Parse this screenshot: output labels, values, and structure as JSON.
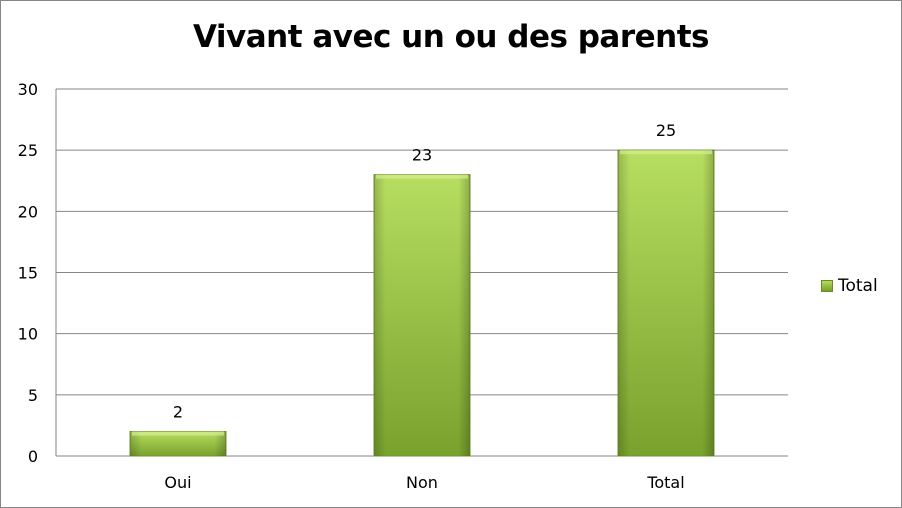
{
  "chart_data": {
    "type": "bar",
    "title": "Vivant avec un ou des parents",
    "categories": [
      "Oui",
      "Non",
      "Total"
    ],
    "series": [
      {
        "name": "Total",
        "values": [
          2,
          23,
          25
        ]
      }
    ],
    "ylim": [
      0,
      30
    ],
    "yticks": [
      "0",
      "5",
      "10",
      "15",
      "20",
      "25",
      "30"
    ],
    "data_labels": [
      "2",
      "23",
      "25"
    ],
    "grid": true,
    "legend_position": "right",
    "colors": {
      "bar_light": "#b4dc5c",
      "bar_dark": "#6f9428",
      "grid": "#868686"
    }
  }
}
